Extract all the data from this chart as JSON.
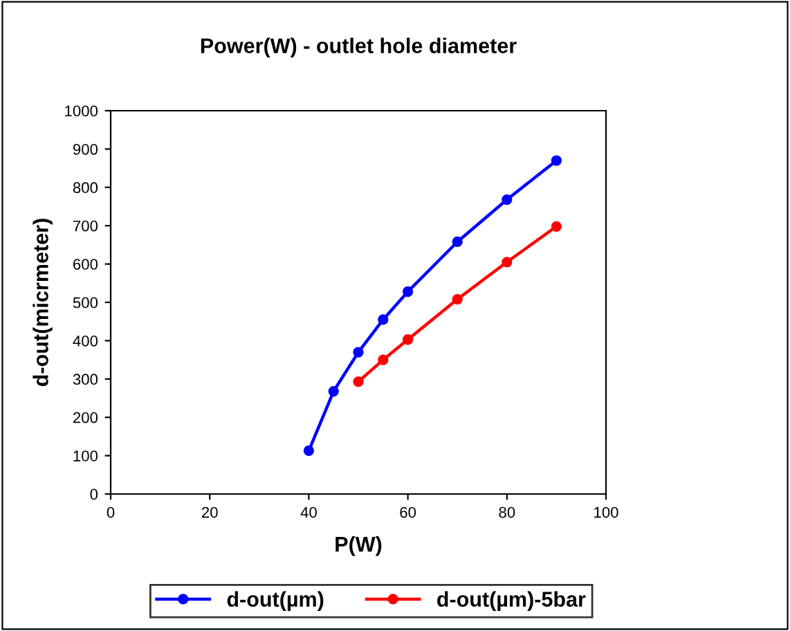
{
  "chart_data": {
    "type": "line",
    "title": "Power(W) - outlet hole diameter",
    "xlabel": "P(W)",
    "ylabel": "d-out(micrmeter)",
    "series": [
      {
        "name": "d-out(µm)",
        "color": "#0000ff",
        "x": [
          40,
          45,
          50,
          55,
          60,
          70,
          80,
          90
        ],
        "values": [
          113,
          268,
          370,
          455,
          528,
          658,
          768,
          870
        ]
      },
      {
        "name": "d-out(µm)-5bar",
        "color": "#ff0000",
        "x": [
          50,
          55,
          60,
          70,
          80,
          90
        ],
        "values": [
          293,
          350,
          403,
          508,
          605,
          698
        ]
      }
    ],
    "xlim": [
      0,
      100
    ],
    "xticks": [
      0,
      20,
      40,
      60,
      80,
      100
    ],
    "ylim": [
      0,
      1000
    ],
    "yticks": [
      0,
      100,
      200,
      300,
      400,
      500,
      600,
      700,
      800,
      900,
      1000
    ],
    "grid": false,
    "legend": "bottom",
    "marker": "circle",
    "line_style": "solid"
  }
}
